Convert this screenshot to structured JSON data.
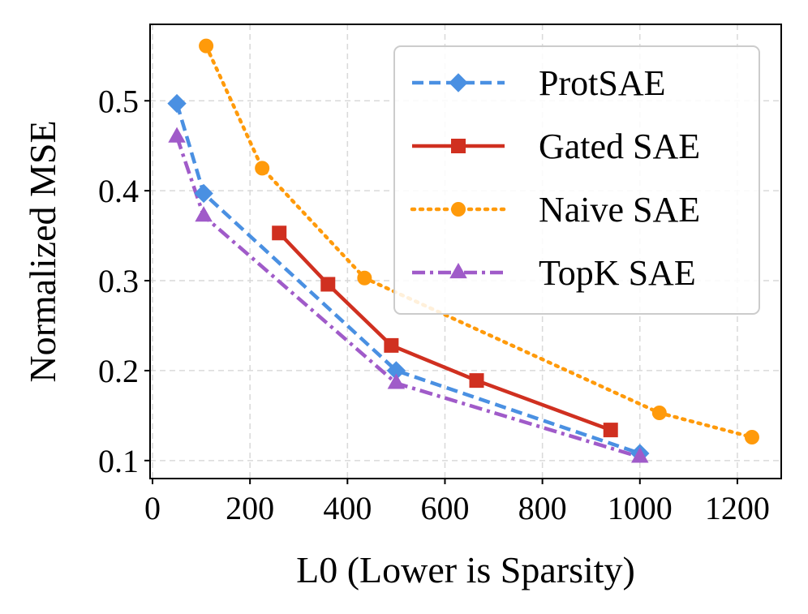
{
  "chart_data": {
    "type": "line",
    "title": "",
    "xlabel": "L0 (Lower is Sparsity)",
    "ylabel": "Normalized MSE",
    "xlim": [
      -5,
      1290
    ],
    "ylim": [
      0.08,
      0.585
    ],
    "xticks": [
      0,
      200,
      400,
      600,
      800,
      1000,
      1200
    ],
    "yticks": [
      0.1,
      0.2,
      0.3,
      0.4,
      0.5
    ],
    "grid": true,
    "legend_position": "top-right",
    "series": [
      {
        "name": "ProtSAE",
        "color": "#4A90E2",
        "line_style": "dashed",
        "marker": "diamond",
        "x": [
          50,
          105,
          500,
          1000
        ],
        "y": [
          0.497,
          0.397,
          0.2,
          0.108
        ]
      },
      {
        "name": "Gated SAE",
        "color": "#D03020",
        "line_style": "solid",
        "marker": "square",
        "x": [
          260,
          360,
          490,
          665,
          940
        ],
        "y": [
          0.353,
          0.296,
          0.228,
          0.189,
          0.134
        ]
      },
      {
        "name": "Naive SAE",
        "color": "#FF9A0A",
        "line_style": "dotted",
        "marker": "circle",
        "x": [
          110,
          225,
          435,
          1040,
          1230
        ],
        "y": [
          0.561,
          0.425,
          0.303,
          0.153,
          0.126
        ]
      },
      {
        "name": "TopK SAE",
        "color": "#A05BC9",
        "line_style": "dashdot",
        "marker": "triangle",
        "x": [
          50,
          105,
          500,
          1000
        ],
        "y": [
          0.46,
          0.372,
          0.186,
          0.104
        ]
      }
    ]
  }
}
